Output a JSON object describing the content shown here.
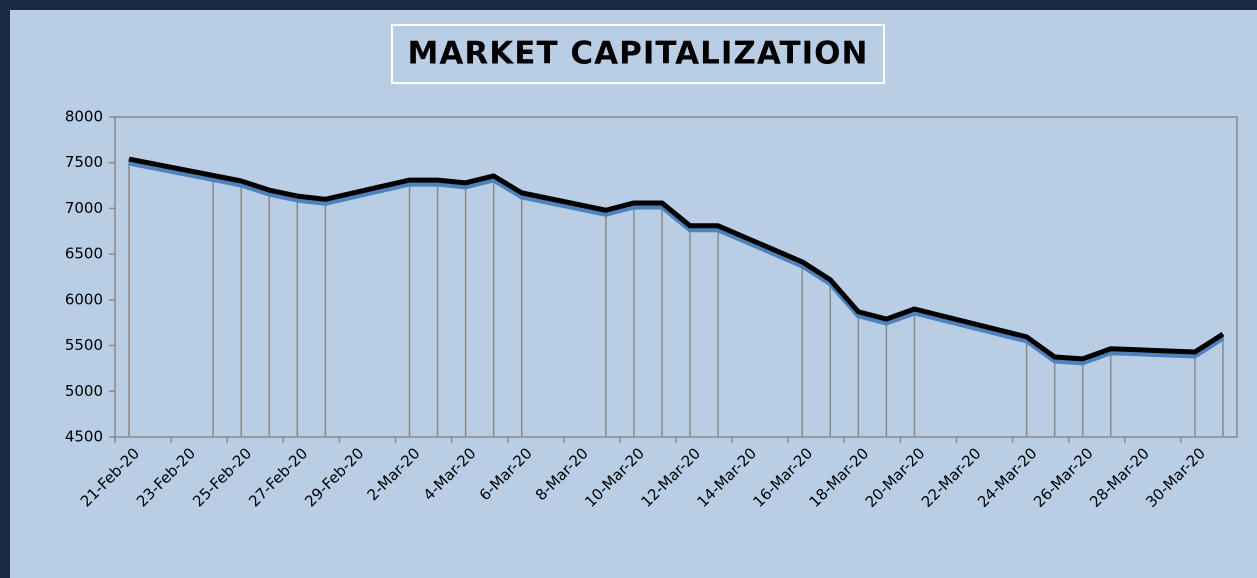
{
  "chart_data": {
    "type": "line",
    "title": "MARKET CAPITALIZATION",
    "x": [
      "2020-02-21",
      "2020-02-24",
      "2020-02-25",
      "2020-02-26",
      "2020-02-27",
      "2020-02-28",
      "2020-03-02",
      "2020-03-03",
      "2020-03-04",
      "2020-03-05",
      "2020-03-06",
      "2020-03-09",
      "2020-03-10",
      "2020-03-11",
      "2020-03-12",
      "2020-03-13",
      "2020-03-16",
      "2020-03-17",
      "2020-03-18",
      "2020-03-19",
      "2020-03-20",
      "2020-03-24",
      "2020-03-25",
      "2020-03-26",
      "2020-03-27",
      "2020-03-30",
      "2020-03-31"
    ],
    "series": [
      {
        "name": "Market Capitalization",
        "color": "#000000",
        "values": [
          7540,
          7360,
          7300,
          7200,
          7135,
          7100,
          7310,
          7310,
          7280,
          7355,
          7170,
          6980,
          7060,
          7060,
          6810,
          6810,
          6415,
          6220,
          5870,
          5790,
          5900,
          5595,
          5375,
          5355,
          5465,
          5430,
          5625
        ]
      }
    ],
    "xlim": [
      "2020-02-21",
      "2020-03-31"
    ],
    "xticks": [
      {
        "value": "2020-02-21",
        "label": "21-Feb-20"
      },
      {
        "value": "2020-02-23",
        "label": "23-Feb-20"
      },
      {
        "value": "2020-02-25",
        "label": "25-Feb-20"
      },
      {
        "value": "2020-02-27",
        "label": "27-Feb-20"
      },
      {
        "value": "2020-02-29",
        "label": "29-Feb-20"
      },
      {
        "value": "2020-03-02",
        "label": "2-Mar-20"
      },
      {
        "value": "2020-03-04",
        "label": "4-Mar-20"
      },
      {
        "value": "2020-03-06",
        "label": "6-Mar-20"
      },
      {
        "value": "2020-03-08",
        "label": "8-Mar-20"
      },
      {
        "value": "2020-03-10",
        "label": "10-Mar-20"
      },
      {
        "value": "2020-03-12",
        "label": "12-Mar-20"
      },
      {
        "value": "2020-03-14",
        "label": "14-Mar-20"
      },
      {
        "value": "2020-03-16",
        "label": "16-Mar-20"
      },
      {
        "value": "2020-03-18",
        "label": "18-Mar-20"
      },
      {
        "value": "2020-03-20",
        "label": "20-Mar-20"
      },
      {
        "value": "2020-03-22",
        "label": "22-Mar-20"
      },
      {
        "value": "2020-03-24",
        "label": "24-Mar-20"
      },
      {
        "value": "2020-03-26",
        "label": "26-Mar-20"
      },
      {
        "value": "2020-03-28",
        "label": "28-Mar-20"
      },
      {
        "value": "2020-03-30",
        "label": "30-Mar-20"
      }
    ],
    "ylim": [
      4500,
      8000
    ],
    "yticks": [
      4500,
      5000,
      5500,
      6000,
      6500,
      7000,
      7500,
      8000
    ],
    "drop_lines": true,
    "grid": false
  }
}
